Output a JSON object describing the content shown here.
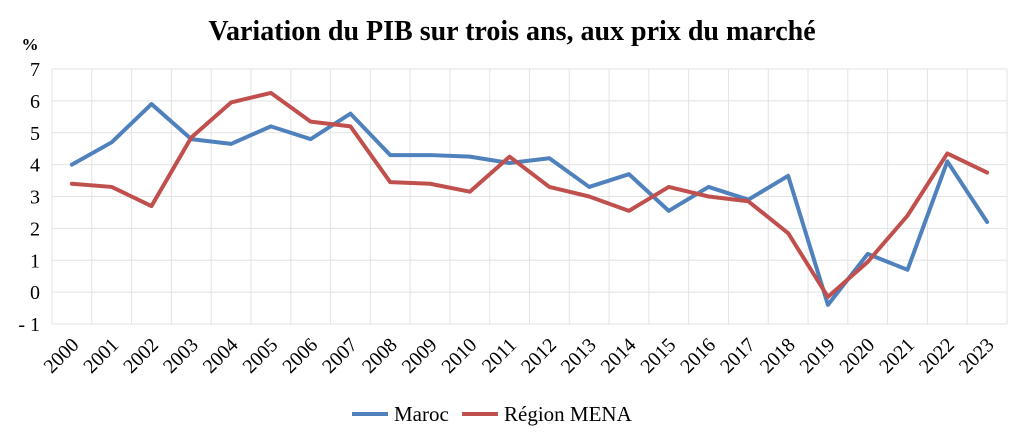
{
  "chart_data": {
    "type": "line",
    "title": "Variation du PIB sur trois ans, aux prix du marché",
    "ylabel": "%",
    "xlabel": "",
    "ylim": [
      -1,
      7
    ],
    "yticks": [
      -1,
      0,
      1,
      2,
      3,
      4,
      5,
      6,
      7
    ],
    "grid": true,
    "legend": "bottom",
    "categories": [
      "2000",
      "2001",
      "2002",
      "2003",
      "2004",
      "2005",
      "2006",
      "2007",
      "2008",
      "2009",
      "2010",
      "2011",
      "2012",
      "2013",
      "2014",
      "2015",
      "2016",
      "2017",
      "2018",
      "2019",
      "2020",
      "2021",
      "2022",
      "2023"
    ],
    "series": [
      {
        "name": "Maroc",
        "color": "#4f81bd",
        "values": [
          4.0,
          4.7,
          5.9,
          4.8,
          4.65,
          5.2,
          4.8,
          5.6,
          4.3,
          4.3,
          4.25,
          4.05,
          4.2,
          3.3,
          3.7,
          2.55,
          3.3,
          2.9,
          3.65,
          -0.4,
          1.2,
          0.7,
          4.1,
          2.2
        ]
      },
      {
        "name": "Région MENA",
        "color": "#c0504d",
        "values": [
          3.4,
          3.3,
          2.7,
          4.85,
          5.95,
          6.25,
          5.35,
          5.2,
          3.45,
          3.4,
          3.15,
          4.25,
          3.3,
          3.0,
          2.55,
          3.3,
          3.0,
          2.85,
          1.85,
          -0.15,
          0.95,
          2.4,
          4.35,
          3.75
        ]
      }
    ]
  }
}
